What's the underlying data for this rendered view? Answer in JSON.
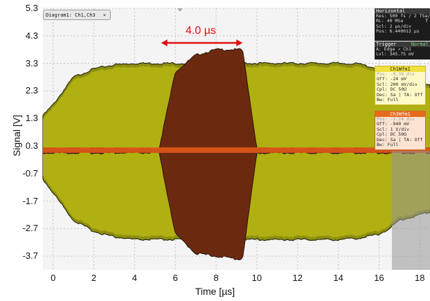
{
  "diagram_tab": {
    "label": "Diagram1: Ch1,Ch3",
    "close": "×"
  },
  "axes": {
    "ylabel": "Signal [V]",
    "xlabel": "Time [µs]",
    "yticks": [
      "5.3",
      "4.3",
      "3.3",
      "2.3",
      "1.3",
      "0.3",
      "-0.7",
      "-1.7",
      "-2.7",
      "-3.7"
    ],
    "xticks": [
      "0",
      "2",
      "4",
      "6",
      "8",
      "10",
      "12",
      "14",
      "16",
      "18"
    ]
  },
  "annotation": {
    "label": "4.0 µs",
    "color": "#e01010"
  },
  "horizontal_panel": {
    "title": "Horizontal",
    "rows": [
      "Res: 500 fs / 2 TSa/s",
      "RL: 40 MSa",
      "Scl: 2 µs/div",
      "Pos: 6.440012 µs"
    ],
    "fragment": "T"
  },
  "trigger_panel": {
    "title": "Trigger",
    "mode": "Normal",
    "rows": [
      "A:  Edge ↗ Ch1",
      "Lvl:  345.75 mV"
    ]
  },
  "ch1_panel": {
    "title": "Ch1Wfm1",
    "rows": [
      "Pos: -0.39 div",
      "Off: -24 mV",
      "Scl: 200 mV/div",
      "Cpl: DC 50Ω",
      "Dec: Sa | TA: Off",
      "Bw: Full"
    ]
  },
  "ch3_panel": {
    "title": "Ch3Wfm1",
    "rows": [
      "Pos: -1.24 div",
      "Off: -940 mV",
      "Scl: 1 V/div",
      "Cpl: DC 50Ω",
      "Dec: Sa | TA: Off",
      "Bw: Full"
    ]
  },
  "colors": {
    "ch1": "#c9c914",
    "ch3": "#e0581a",
    "burst": "#6b2a10",
    "annotation": "#e01010"
  },
  "chart_data": {
    "type": "line",
    "x_range": [
      -0.5,
      18.5
    ],
    "ylim": [
      -4.2,
      5.3
    ],
    "grid": true,
    "series": [
      {
        "name": "Ch1Wfm1",
        "x": [
          -0.5,
          0,
          1,
          2,
          3,
          4,
          14,
          15,
          16,
          16.5,
          17,
          18.5
        ],
        "upper": [
          1.4,
          1.8,
          2.8,
          3.1,
          3.25,
          3.3,
          3.3,
          3.28,
          3.1,
          2.9,
          2.7,
          2.5
        ],
        "lower": [
          -0.9,
          -1.4,
          -2.4,
          -2.8,
          -3.0,
          -3.1,
          -3.1,
          -3.05,
          -2.9,
          -2.7,
          -2.4,
          -2.1
        ]
      },
      {
        "name": "Ch3Wfm1",
        "x": [
          -0.5,
          5.2,
          6,
          7,
          8,
          9,
          9.3,
          10,
          18.5
        ],
        "upper": [
          0.2,
          0.2,
          3.0,
          3.6,
          3.8,
          3.8,
          3.8,
          0.2,
          0.2
        ],
        "lower": [
          0.05,
          0.05,
          -2.9,
          -3.6,
          -3.7,
          -3.8,
          -3.8,
          0.05,
          0.05
        ]
      }
    ]
  }
}
